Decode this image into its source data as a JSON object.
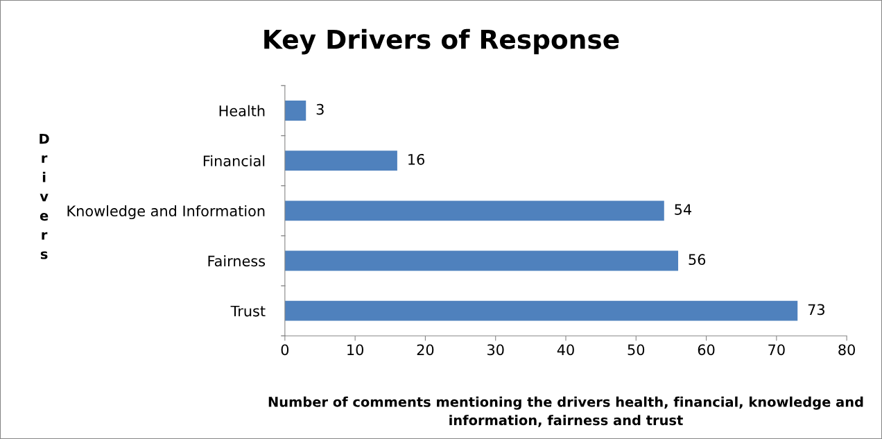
{
  "chart_data": {
    "type": "bar",
    "orientation": "horizontal",
    "title": "Key Drivers of Response",
    "xlabel": "Number of comments mentioning the drivers health, financial, knowledge and\ninformation, fairness and trust",
    "ylabel": "Drivers",
    "categories": [
      "Health",
      "Financial",
      "Knowledge and Information",
      "Fairness",
      "Trust"
    ],
    "values": [
      3,
      16,
      54,
      56,
      73
    ],
    "color": "#4f81bd",
    "xlim": [
      0,
      80
    ],
    "xticks": [
      0,
      10,
      20,
      30,
      40,
      50,
      60,
      70,
      80
    ],
    "data_labels": true,
    "grid": false,
    "legend": false
  }
}
